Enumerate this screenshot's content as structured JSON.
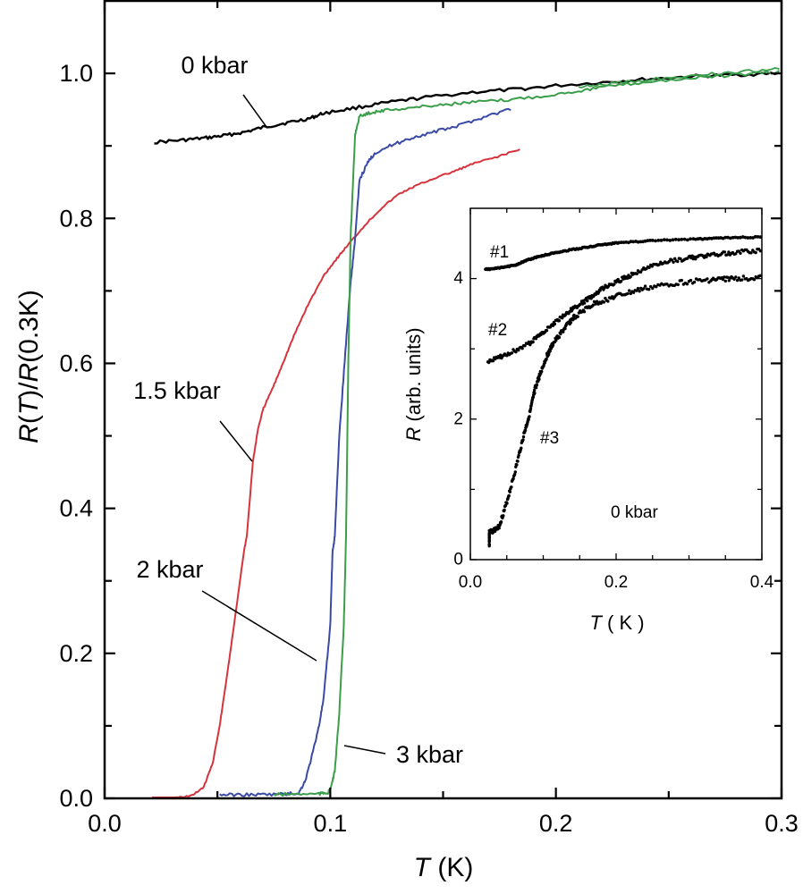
{
  "chart_data": [
    {
      "id": "main",
      "type": "line",
      "title": "",
      "xlabel": "T (K)",
      "xlabel_parts": [
        {
          "text": "T",
          "italic": true
        },
        {
          "text": " (K)",
          "italic": false
        }
      ],
      "ylabel": "R(T)/R(0.3K)",
      "ylabel_parts": [
        {
          "text": "R",
          "italic": true
        },
        {
          "text": "(",
          "italic": false
        },
        {
          "text": "T",
          "italic": true
        },
        {
          "text": ")/",
          "italic": false
        },
        {
          "text": "R",
          "italic": true
        },
        {
          "text": "(0.3K)",
          "italic": false
        }
      ],
      "xlim": [
        0.0,
        0.3
      ],
      "ylim": [
        0.0,
        1.1
      ],
      "xticks_major": [
        0.0,
        0.1,
        0.2,
        0.3
      ],
      "xtick_labels": [
        "0.0",
        "0.1",
        "0.2",
        "0.3"
      ],
      "xticks_minor": [
        0.05,
        0.15,
        0.25
      ],
      "yticks_major": [
        0.0,
        0.2,
        0.4,
        0.6,
        0.8,
        1.0
      ],
      "ytick_labels": [
        "0.0",
        "0.2",
        "0.4",
        "0.6",
        "0.8",
        "1.0"
      ],
      "yticks_minor": [
        0.1,
        0.3,
        0.5,
        0.7,
        0.9
      ],
      "grid": false,
      "ticks_direction": "in",
      "series": [
        {
          "name": "0 kbar",
          "color": "#000000",
          "x": [
            0.022,
            0.035,
            0.045,
            0.0526,
            0.062,
            0.071,
            0.081,
            0.091,
            0.097,
            0.11,
            0.124,
            0.14,
            0.163,
            0.183,
            0.2,
            0.223,
            0.24,
            0.262,
            0.28,
            0.299
          ],
          "y": [
            0.905,
            0.908,
            0.911,
            0.914,
            0.919,
            0.926,
            0.932,
            0.938,
            0.945,
            0.952,
            0.959,
            0.966,
            0.974,
            0.978,
            0.983,
            0.988,
            0.992,
            0.996,
            0.998,
            1.0
          ]
        },
        {
          "name": "1.5 kbar",
          "color": "#d6343c",
          "x": [
            0.021,
            0.03,
            0.039,
            0.044,
            0.048,
            0.051,
            0.054,
            0.058,
            0.0617,
            0.063,
            0.0657,
            0.068,
            0.0704,
            0.0752,
            0.08,
            0.0843,
            0.09,
            0.0975,
            0.103,
            0.108,
            0.116,
            0.123,
            0.1306,
            0.138,
            0.145,
            0.155,
            0.163,
            0.174,
            0.184
          ],
          "y": [
            0.0,
            0.0,
            0.004,
            0.016,
            0.05,
            0.1,
            0.164,
            0.254,
            0.34,
            0.361,
            0.464,
            0.51,
            0.538,
            0.571,
            0.608,
            0.641,
            0.68,
            0.723,
            0.745,
            0.764,
            0.793,
            0.815,
            0.834,
            0.845,
            0.854,
            0.865,
            0.875,
            0.885,
            0.895
          ]
        },
        {
          "name": "2 kbar",
          "color": "#3a4aa6",
          "x": [
            0.051,
            0.06,
            0.07,
            0.08,
            0.086,
            0.089,
            0.092,
            0.095,
            0.097,
            0.1,
            0.101,
            0.102,
            0.104,
            0.107,
            0.109,
            0.111,
            0.113,
            0.117,
            0.12,
            0.128,
            0.137,
            0.147,
            0.157,
            0.168,
            0.18
          ],
          "y": [
            0.005,
            0.005,
            0.005,
            0.006,
            0.007,
            0.025,
            0.06,
            0.1,
            0.136,
            0.238,
            0.34,
            0.361,
            0.5,
            0.629,
            0.71,
            0.772,
            0.854,
            0.879,
            0.891,
            0.902,
            0.912,
            0.92,
            0.928,
            0.94,
            0.951
          ]
        },
        {
          "name": "3 kbar",
          "color": "#3a9e4a",
          "x": [
            0.075,
            0.085,
            0.095,
            0.099,
            0.1,
            0.102,
            0.104,
            0.106,
            0.107,
            0.108,
            0.109,
            0.111,
            0.113,
            0.118,
            0.124,
            0.137,
            0.15,
            0.163,
            0.177,
            0.195,
            0.21,
            0.223,
            0.24,
            0.262,
            0.28,
            0.299
          ],
          "y": [
            0.005,
            0.006,
            0.006,
            0.008,
            0.012,
            0.037,
            0.118,
            0.238,
            0.361,
            0.6,
            0.772,
            0.916,
            0.941,
            0.946,
            0.949,
            0.953,
            0.957,
            0.96,
            0.963,
            0.969,
            0.976,
            0.982,
            0.988,
            0.994,
            0.998,
            1.002
          ]
        }
      ],
      "annotations": [
        {
          "text": "0 kbar",
          "series": "0 kbar",
          "points_to": [
            0.071,
            0.926
          ]
        },
        {
          "text": "1.5 kbar",
          "series": "1.5 kbar",
          "points_to": [
            0.066,
            0.468
          ]
        },
        {
          "text": "2 kbar",
          "series": "2 kbar",
          "points_to": [
            0.094,
            0.19
          ]
        },
        {
          "text": "3 kbar",
          "series": "3 kbar",
          "points_to": [
            0.106,
            0.073
          ]
        }
      ],
      "legend": "none (direct line annotations)"
    },
    {
      "id": "inset",
      "type": "scatter",
      "title": "",
      "xlabel": "T ( K )",
      "xlabel_parts": [
        {
          "text": "T",
          "italic": true
        },
        {
          "text": " ( K )",
          "italic": false
        }
      ],
      "ylabel": "R (arb. units)",
      "ylabel_parts": [
        {
          "text": "R",
          "italic": true
        },
        {
          "text": " (arb. units)",
          "italic": false
        }
      ],
      "xlim": [
        0.0,
        0.4
      ],
      "ylim": [
        0,
        5
      ],
      "xticks_major": [
        0.0,
        0.2,
        0.4
      ],
      "xtick_labels": [
        "0.0",
        "0.2",
        "0.4"
      ],
      "xticks_minor": [
        0.05,
        0.1,
        0.15,
        0.25,
        0.3,
        0.35
      ],
      "yticks_major": [
        0,
        2,
        4
      ],
      "ytick_labels": [
        "0",
        "2",
        "4"
      ],
      "yticks_minor": [
        1,
        3
      ],
      "grid": false,
      "ticks_direction": "in",
      "placement": "center-right inside main plot",
      "series": [
        {
          "name": "#1",
          "color": "#000000",
          "x": [
            0.021,
            0.04,
            0.061,
            0.08,
            0.1,
            0.122,
            0.15,
            0.18,
            0.204,
            0.25,
            0.306,
            0.35,
            0.398
          ],
          "y": [
            4.13,
            4.15,
            4.19,
            4.27,
            4.33,
            4.38,
            4.43,
            4.48,
            4.51,
            4.54,
            4.56,
            4.58,
            4.59
          ]
        },
        {
          "name": "#2",
          "color": "#000000",
          "x": [
            0.024,
            0.05,
            0.082,
            0.1,
            0.122,
            0.14,
            0.163,
            0.18,
            0.204,
            0.23,
            0.265,
            0.3,
            0.327,
            0.36,
            0.398
          ],
          "y": [
            2.82,
            2.92,
            3.08,
            3.24,
            3.42,
            3.57,
            3.72,
            3.85,
            3.97,
            4.1,
            4.23,
            4.29,
            4.33,
            4.37,
            4.4
          ]
        },
        {
          "name": "#3",
          "color": "#000000",
          "x": [
            0.026,
            0.026,
            0.039,
            0.049,
            0.061,
            0.073,
            0.082,
            0.089,
            0.095,
            0.105,
            0.114,
            0.13,
            0.143,
            0.17,
            0.204,
            0.24,
            0.285,
            0.33,
            0.36,
            0.398
          ],
          "y": [
            0.22,
            0.38,
            0.46,
            0.78,
            1.24,
            1.76,
            2.1,
            2.44,
            2.62,
            2.9,
            3.08,
            3.3,
            3.46,
            3.64,
            3.76,
            3.86,
            3.94,
            3.98,
            4.0,
            4.01
          ]
        }
      ],
      "annotations": [
        {
          "text": "#1",
          "series": "#1"
        },
        {
          "text": "#2",
          "series": "#2"
        },
        {
          "text": "#3",
          "series": "#3"
        },
        {
          "text": "0 kbar",
          "series": null
        }
      ]
    }
  ]
}
